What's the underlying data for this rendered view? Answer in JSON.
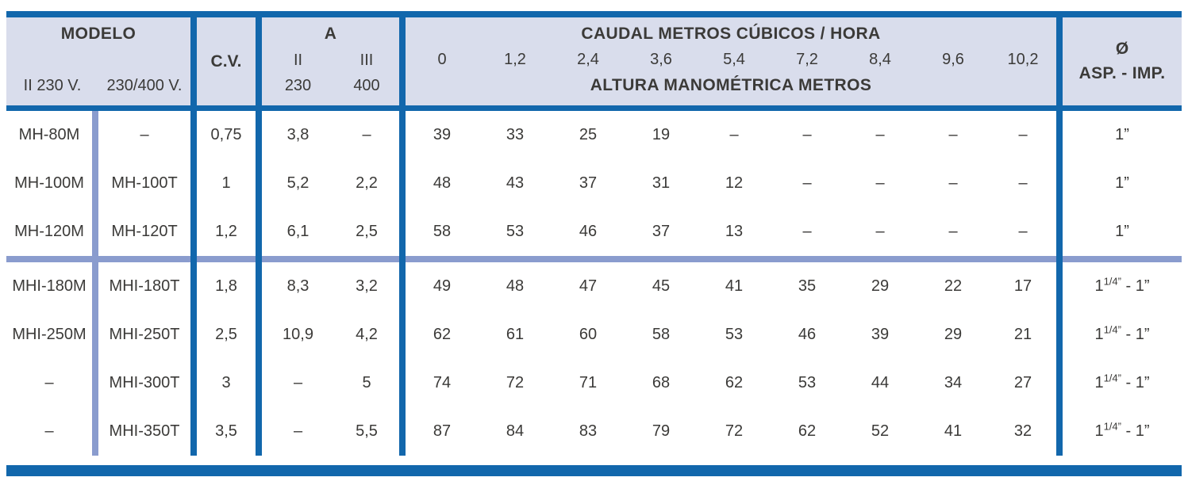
{
  "colors": {
    "dark_blue": "#1267ac",
    "light_blue": "#8a9cce",
    "header_bg": "#d9ddec",
    "text": "#3b3a38"
  },
  "table": {
    "header": {
      "modelo": "MODELO",
      "model_single": "II 230 V.",
      "model_three": "230/400 V.",
      "cv": "C.V.",
      "amp": "A",
      "amp_ii": "II",
      "amp_iii": "III",
      "amp_230": "230",
      "amp_400": "400",
      "caudal_title": "CAUDAL METROS CÚBICOS / HORA",
      "altura_title": "ALTURA MANOMÉTRICA METROS",
      "flow_values": [
        "0",
        "1,2",
        "2,4",
        "3,6",
        "5,4",
        "7,2",
        "8,4",
        "9,6",
        "10,2"
      ],
      "dia_symbol": "Ø",
      "dia_label": "ASP. - IMP."
    },
    "groups": [
      {
        "rows": [
          {
            "model_single": "MH-80M",
            "model_three": "–",
            "cv": "0,75",
            "amp_230": "3,8",
            "amp_400": "–",
            "heads": [
              "39",
              "33",
              "25",
              "19",
              "–",
              "–",
              "–",
              "–",
              "–"
            ],
            "dia": {
              "pre": "1",
              "sup": "",
              "post": "”"
            }
          },
          {
            "model_single": "MH-100M",
            "model_three": "MH-100T",
            "cv": "1",
            "amp_230": "5,2",
            "amp_400": "2,2",
            "heads": [
              "48",
              "43",
              "37",
              "31",
              "12",
              "–",
              "–",
              "–",
              "–"
            ],
            "dia": {
              "pre": "1",
              "sup": "",
              "post": "”"
            }
          },
          {
            "model_single": "MH-120M",
            "model_three": "MH-120T",
            "cv": "1,2",
            "amp_230": "6,1",
            "amp_400": "2,5",
            "heads": [
              "58",
              "53",
              "46",
              "37",
              "13",
              "–",
              "–",
              "–",
              "–"
            ],
            "dia": {
              "pre": "1",
              "sup": "",
              "post": "”"
            }
          }
        ]
      },
      {
        "rows": [
          {
            "model_single": "MHI-180M",
            "model_three": "MHI-180T",
            "cv": "1,8",
            "amp_230": "8,3",
            "amp_400": "3,2",
            "heads": [
              "49",
              "48",
              "47",
              "45",
              "41",
              "35",
              "29",
              "22",
              "17"
            ],
            "dia": {
              "pre": "1",
              "sup": "1/4”",
              "post": " - 1”"
            }
          },
          {
            "model_single": "MHI-250M",
            "model_three": "MHI-250T",
            "cv": "2,5",
            "amp_230": "10,9",
            "amp_400": "4,2",
            "heads": [
              "62",
              "61",
              "60",
              "58",
              "53",
              "46",
              "39",
              "29",
              "21"
            ],
            "dia": {
              "pre": "1",
              "sup": "1/4”",
              "post": " - 1”"
            }
          },
          {
            "model_single": "–",
            "model_three": "MHI-300T",
            "cv": "3",
            "amp_230": "–",
            "amp_400": "5",
            "heads": [
              "74",
              "72",
              "71",
              "68",
              "62",
              "53",
              "44",
              "34",
              "27"
            ],
            "dia": {
              "pre": "1",
              "sup": "1/4”",
              "post": " - 1”"
            }
          },
          {
            "model_single": "–",
            "model_three": "MHI-350T",
            "cv": "3,5",
            "amp_230": "–",
            "amp_400": "5,5",
            "heads": [
              "87",
              "84",
              "83",
              "79",
              "72",
              "62",
              "52",
              "41",
              "32"
            ],
            "dia": {
              "pre": "1",
              "sup": "1/4”",
              "post": " - 1”"
            }
          }
        ]
      }
    ]
  }
}
